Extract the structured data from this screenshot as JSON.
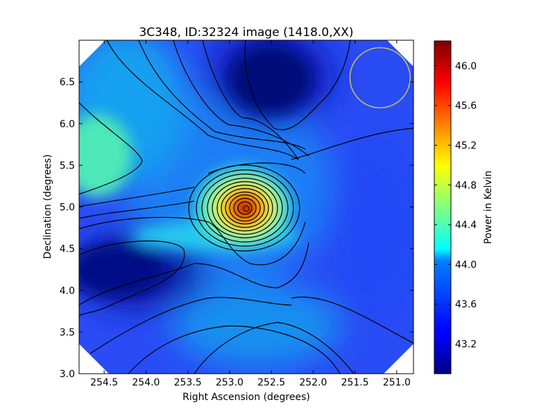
{
  "chart_data": {
    "type": "heatmap",
    "title": "3C348, ID:32324 image (1418.0,XX)",
    "xlabel": "Right Ascension (degrees)",
    "ylabel": "Declination (degrees)",
    "x_ticks": [
      "254.5",
      "254.0",
      "253.5",
      "253.0",
      "252.5",
      "252.0",
      "251.5",
      "251.0"
    ],
    "x_tick_values": [
      254.5,
      254.0,
      253.5,
      253.0,
      252.5,
      252.0,
      251.5,
      251.0
    ],
    "y_ticks": [
      "3.0",
      "3.5",
      "4.0",
      "4.5",
      "5.0",
      "5.5",
      "6.0",
      "6.5"
    ],
    "y_tick_values": [
      3.0,
      3.5,
      4.0,
      4.5,
      5.0,
      5.5,
      6.0,
      6.5
    ],
    "xlim": [
      254.8,
      250.8
    ],
    "ylim": [
      3.0,
      7.0
    ],
    "colorbar": {
      "label": "Power in Kelvin",
      "ticks": [
        "43.2",
        "43.6",
        "44.0",
        "44.4",
        "44.8",
        "45.2",
        "45.6",
        "46.0"
      ],
      "tick_values": [
        43.2,
        43.6,
        44.0,
        44.4,
        44.8,
        45.2,
        45.6,
        46.0
      ],
      "range": [
        42.9,
        46.25
      ],
      "colormap": "jet"
    },
    "source_peak": {
      "ra": 252.8,
      "dec": 4.98,
      "value": 46.1
    },
    "beam_circle": {
      "ra": 251.2,
      "dec": 6.55,
      "radius_deg": 0.36,
      "color": "#c8c850"
    },
    "grid": false
  }
}
